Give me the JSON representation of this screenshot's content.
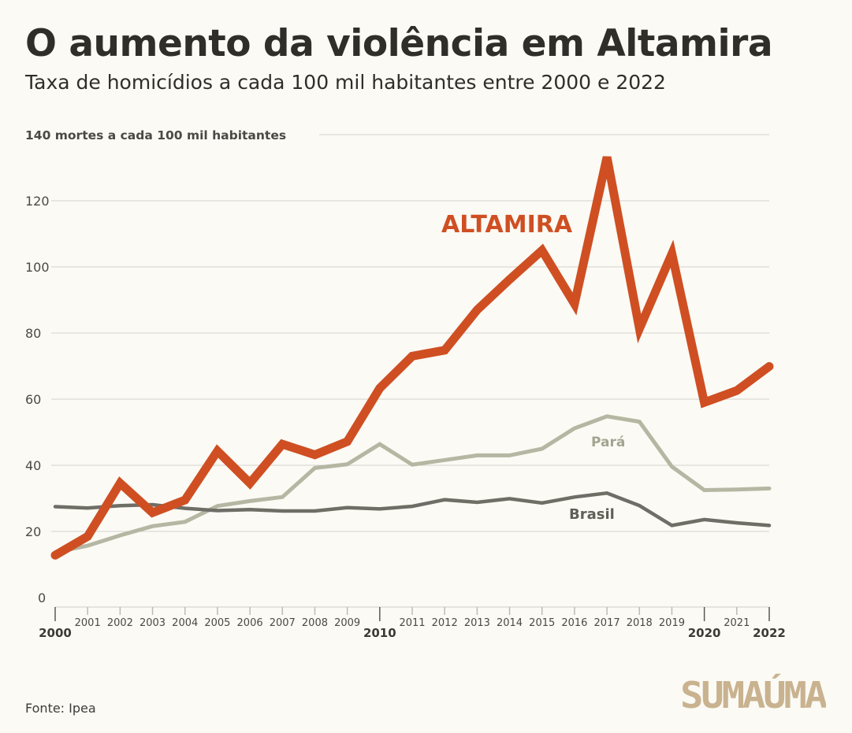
{
  "header": {
    "title": "O aumento da violência em Altamira",
    "subtitle": "Taxa de homicídios a cada 100 mil habitantes entre 2000 e 2022"
  },
  "footer": {
    "source": "Fonte: Ipea"
  },
  "logo": {
    "text": "SUMAÚMA",
    "color": "#c9b28f"
  },
  "chart_data": {
    "type": "line",
    "title": "O aumento da violência em Altamira",
    "subtitle": "Taxa de homicídios a cada 100 mil habitantes entre 2000 e 2022",
    "top_label": "140 mortes a cada 100 mil habitantes",
    "x": [
      2000,
      2001,
      2002,
      2003,
      2004,
      2005,
      2006,
      2007,
      2008,
      2009,
      2010,
      2011,
      2012,
      2013,
      2014,
      2015,
      2016,
      2017,
      2018,
      2019,
      2020,
      2021,
      2022
    ],
    "x_tick_labels": [
      "2000",
      "2001",
      "2002",
      "2003",
      "2004",
      "2005",
      "2006",
      "2007",
      "2008",
      "2009",
      "2010",
      "2011",
      "2012",
      "2013",
      "2014",
      "2015",
      "2016",
      "2017",
      "2018",
      "2019",
      "2020",
      "2021",
      "2022"
    ],
    "x_bold_ticks": [
      "2000",
      "2010",
      "2020",
      "2022"
    ],
    "ylim": [
      0,
      140
    ],
    "y_ticks": [
      0,
      20,
      40,
      60,
      80,
      100,
      120
    ],
    "y_tick_labels": [
      "0",
      "20",
      "40",
      "60",
      "80",
      "100",
      "120"
    ],
    "grid": true,
    "series": [
      {
        "name": "ALTAMIRA",
        "color": "#cf4f23",
        "values": [
          12.8,
          18.5,
          34.6,
          25.7,
          29.5,
          44.3,
          34.6,
          46.4,
          43.2,
          47.2,
          63.3,
          73.0,
          74.8,
          87.0,
          96.2,
          105.0,
          88.8,
          133.2,
          81.3,
          104.0,
          59.0,
          62.6,
          69.9
        ]
      },
      {
        "name": "Pará",
        "color": "#b6b7a3",
        "values": [
          13.7,
          15.7,
          18.8,
          21.6,
          22.9,
          27.7,
          29.2,
          30.4,
          39.2,
          40.3,
          46.4,
          40.2,
          41.6,
          43.0,
          43.0,
          45.0,
          51.2,
          54.8,
          53.2,
          39.6,
          32.5,
          32.7,
          33.0
        ]
      },
      {
        "name": "Brasil",
        "color": "#6f6e66",
        "values": [
          27.5,
          27.1,
          27.8,
          28.1,
          27.0,
          26.3,
          26.6,
          26.2,
          26.2,
          27.2,
          26.8,
          27.6,
          29.6,
          28.8,
          29.9,
          28.6,
          30.4,
          31.6,
          27.8,
          21.8,
          23.6,
          22.6,
          21.8
        ]
      }
    ],
    "series_labels": [
      {
        "text": "ALTAMIRA",
        "series": "ALTAMIRA"
      },
      {
        "text": "Pará",
        "series": "Pará"
      },
      {
        "text": "Brasil",
        "series": "Brasil"
      }
    ]
  }
}
